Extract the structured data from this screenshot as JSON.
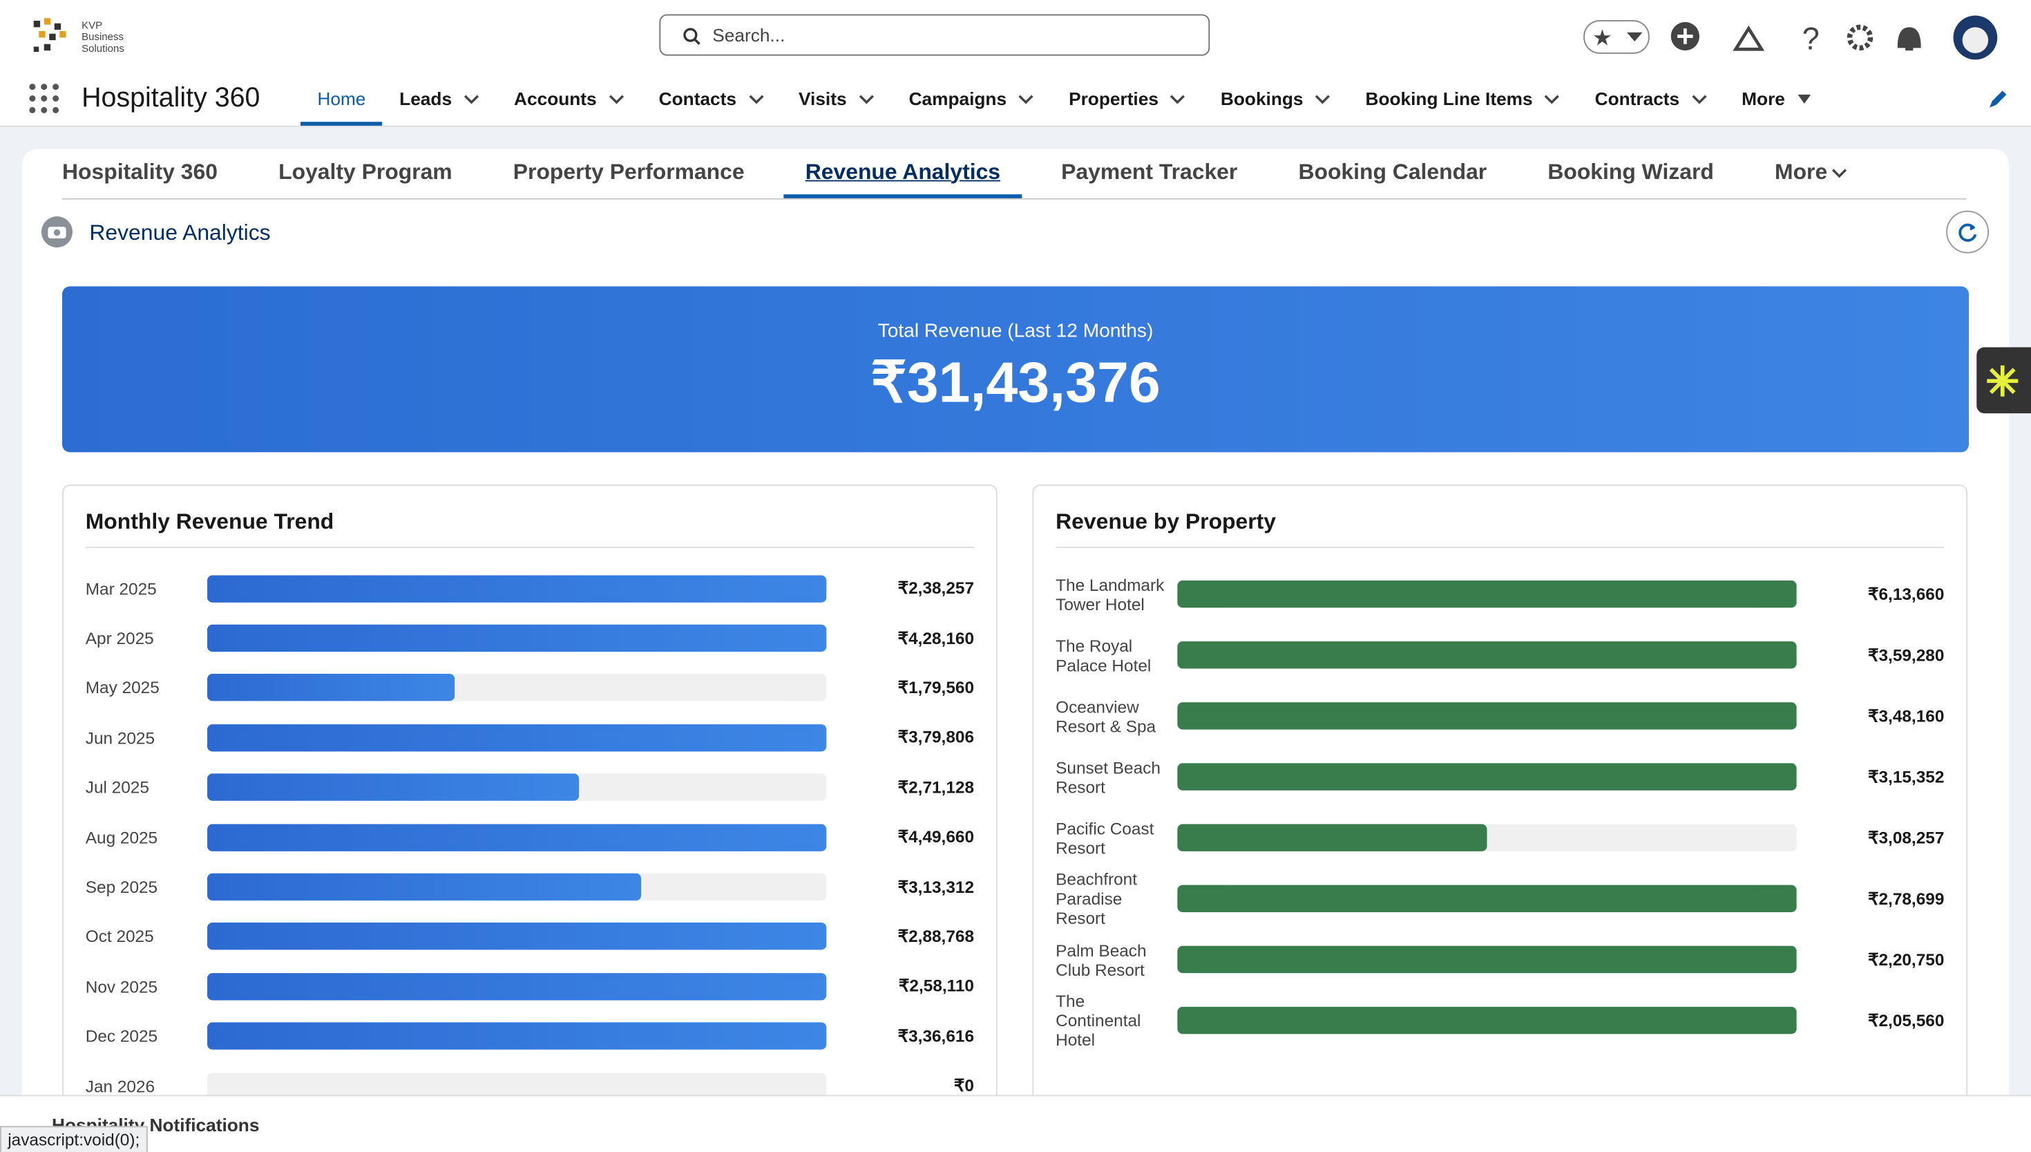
{
  "header": {
    "logo_lines": [
      "KVP",
      "Business",
      "Solutions"
    ],
    "search_placeholder": "Search...",
    "app_name": "Hospitality 360",
    "nav": [
      "Home",
      "Leads",
      "Accounts",
      "Contacts",
      "Visits",
      "Campaigns",
      "Properties",
      "Bookings",
      "Booking Line Items",
      "Contracts",
      "More"
    ],
    "active_nav": 0
  },
  "tabs": {
    "items": [
      "Hospitality 360",
      "Loyalty Program",
      "Property Performance",
      "Revenue Analytics",
      "Payment Tracker",
      "Booking Calendar",
      "Booking Wizard",
      "More"
    ],
    "active": 3
  },
  "page": {
    "title": "Revenue Analytics",
    "kpi": {
      "label": "Total Revenue (Last 12 Months)",
      "value": "₹31,43,376"
    },
    "monthly": {
      "title": "Monthly Revenue Trend",
      "rows": [
        {
          "label": "Mar 2025",
          "value": "₹2,38,257",
          "bar_percent": 100
        },
        {
          "label": "Apr 2025",
          "value": "₹4,28,160",
          "bar_percent": 100
        },
        {
          "label": "May 2025",
          "value": "₹1,79,560",
          "bar_percent": 40
        },
        {
          "label": "Jun 2025",
          "value": "₹3,79,806",
          "bar_percent": 100
        },
        {
          "label": "Jul 2025",
          "value": "₹2,71,128",
          "bar_percent": 60
        },
        {
          "label": "Aug 2025",
          "value": "₹4,49,660",
          "bar_percent": 100
        },
        {
          "label": "Sep 2025",
          "value": "₹3,13,312",
          "bar_percent": 70
        },
        {
          "label": "Oct 2025",
          "value": "₹2,88,768",
          "bar_percent": 100
        },
        {
          "label": "Nov 2025",
          "value": "₹2,58,110",
          "bar_percent": 100
        },
        {
          "label": "Dec 2025",
          "value": "₹3,36,616",
          "bar_percent": 100
        },
        {
          "label": "Jan 2026",
          "value": "₹0",
          "bar_percent": 0
        }
      ]
    },
    "property": {
      "title": "Revenue by Property",
      "rows": [
        {
          "label": "The Landmark Tower Hotel",
          "value": "₹6,13,660",
          "bar_percent": 100
        },
        {
          "label": "The Royal Palace Hotel",
          "value": "₹3,59,280",
          "bar_percent": 100
        },
        {
          "label": "Oceanview Resort & Spa",
          "value": "₹3,48,160",
          "bar_percent": 100
        },
        {
          "label": "Sunset Beach Resort",
          "value": "₹3,15,352",
          "bar_percent": 100
        },
        {
          "label": "Pacific Coast Resort",
          "value": "₹3,08,257",
          "bar_percent": 50
        },
        {
          "label": "Beachfront Paradise Resort",
          "value": "₹2,78,699",
          "bar_percent": 100
        },
        {
          "label": "Palm Beach Club Resort",
          "value": "₹2,20,750",
          "bar_percent": 100
        },
        {
          "label": "The Continental Hotel",
          "value": "₹2,05,560",
          "bar_percent": 100
        }
      ]
    }
  },
  "footer": {
    "utility": "Hospitality Notifications",
    "status": "javascript:void(0);"
  }
}
